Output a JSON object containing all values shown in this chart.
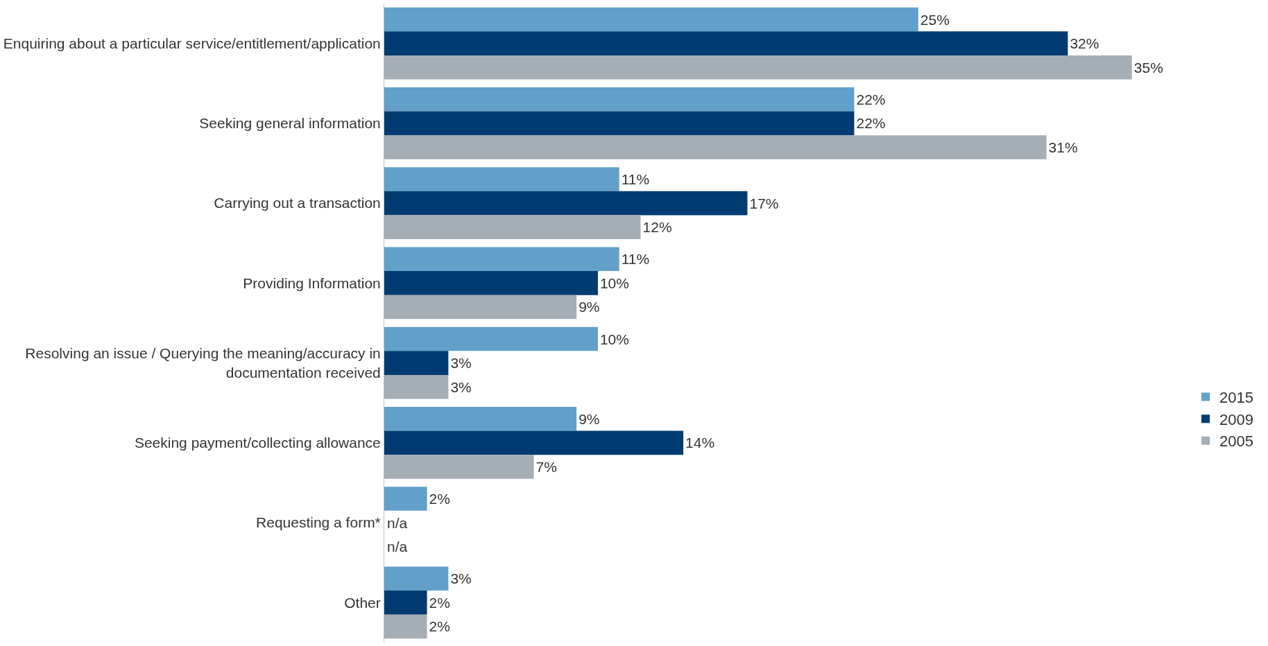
{
  "chart_data": {
    "type": "bar",
    "orientation": "horizontal",
    "legend": "right",
    "data_labels": true,
    "categories": [
      "Enquiring about a particular service/entitlement/application",
      "Seeking general information",
      "Carrying out a transaction",
      "Providing Information",
      "Resolving an issue / Querying the meaning/accuracy in documentation received",
      "Seeking payment/collecting allowance",
      "Requesting a form*",
      "Other"
    ],
    "series": [
      {
        "name": "2015",
        "color": "#62a0c9",
        "values": [
          25,
          22,
          11,
          11,
          10,
          9,
          2,
          3
        ],
        "value_labels": [
          "25%",
          "22%",
          "11%",
          "11%",
          "10%",
          "9%",
          "2%",
          "3%"
        ]
      },
      {
        "name": "2009",
        "color": "#003c71",
        "values": [
          32,
          22,
          17,
          10,
          3,
          14,
          null,
          2
        ],
        "value_labels": [
          "32%",
          "22%",
          "17%",
          "10%",
          "3%",
          "14%",
          "n/a",
          "2%"
        ]
      },
      {
        "name": "2005",
        "color": "#a5adb5",
        "values": [
          35,
          31,
          12,
          9,
          3,
          7,
          null,
          2
        ],
        "value_labels": [
          "35%",
          "31%",
          "12%",
          "9%",
          "3%",
          "7%",
          "n/a",
          "2%"
        ]
      }
    ]
  }
}
